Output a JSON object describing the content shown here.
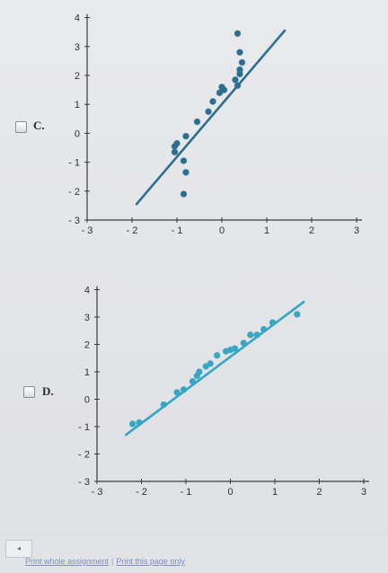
{
  "options": [
    {
      "label": "C.",
      "chart_data": {
        "type": "scatter",
        "x_ticks": [
          "- 3",
          "- 2",
          "- 1",
          "0",
          "1",
          "2",
          "3"
        ],
        "y_ticks": [
          "- 3",
          "- 2",
          "- 1",
          "0",
          "1",
          "2",
          "3",
          "4"
        ],
        "xlim": [
          -3,
          3
        ],
        "ylim": [
          -3,
          4
        ],
        "line": {
          "x1": -1.9,
          "y1": -2.45,
          "x2": 1.4,
          "y2": 3.55
        },
        "points": [
          [
            -1.05,
            -0.45
          ],
          [
            -1.05,
            -0.65
          ],
          [
            -1.0,
            -0.35
          ],
          [
            -0.85,
            -0.95
          ],
          [
            -0.8,
            -1.35
          ],
          [
            -0.85,
            -2.1
          ],
          [
            -0.8,
            -0.1
          ],
          [
            -0.55,
            0.4
          ],
          [
            -0.3,
            0.75
          ],
          [
            -0.2,
            1.1
          ],
          [
            -0.05,
            1.4
          ],
          [
            0.0,
            1.6
          ],
          [
            0.05,
            1.5
          ],
          [
            0.3,
            1.85
          ],
          [
            0.35,
            1.65
          ],
          [
            0.4,
            2.05
          ],
          [
            0.4,
            2.2
          ],
          [
            0.45,
            2.45
          ],
          [
            0.4,
            2.8
          ],
          [
            0.35,
            3.45
          ]
        ],
        "color": "#2c6e93"
      }
    },
    {
      "label": "D.",
      "chart_data": {
        "type": "scatter",
        "x_ticks": [
          "- 3",
          "- 2",
          "- 1",
          "0",
          "1",
          "2",
          "3"
        ],
        "y_ticks": [
          "- 3",
          "- 2",
          "- 1",
          "0",
          "1",
          "2",
          "3",
          "4"
        ],
        "xlim": [
          -3,
          3
        ],
        "ylim": [
          -3,
          4
        ],
        "line": {
          "x1": -2.35,
          "y1": -1.3,
          "x2": 1.65,
          "y2": 3.55
        },
        "points": [
          [
            -2.2,
            -0.9
          ],
          [
            -2.05,
            -0.85
          ],
          [
            -1.5,
            -0.2
          ],
          [
            -1.2,
            0.25
          ],
          [
            -1.05,
            0.35
          ],
          [
            -0.85,
            0.65
          ],
          [
            -0.75,
            0.85
          ],
          [
            -0.7,
            1.0
          ],
          [
            -0.55,
            1.2
          ],
          [
            -0.45,
            1.3
          ],
          [
            -0.3,
            1.6
          ],
          [
            -0.1,
            1.75
          ],
          [
            0.0,
            1.8
          ],
          [
            0.1,
            1.85
          ],
          [
            0.3,
            2.05
          ],
          [
            0.45,
            2.35
          ],
          [
            0.6,
            2.35
          ],
          [
            0.75,
            2.55
          ],
          [
            0.95,
            2.8
          ],
          [
            1.5,
            3.1
          ]
        ],
        "color": "#35a6c4"
      }
    }
  ],
  "footer": {
    "scroll_left": "◂",
    "print_whole": "Print whole assignment",
    "separator": "|",
    "print_page": "Print this page only"
  }
}
